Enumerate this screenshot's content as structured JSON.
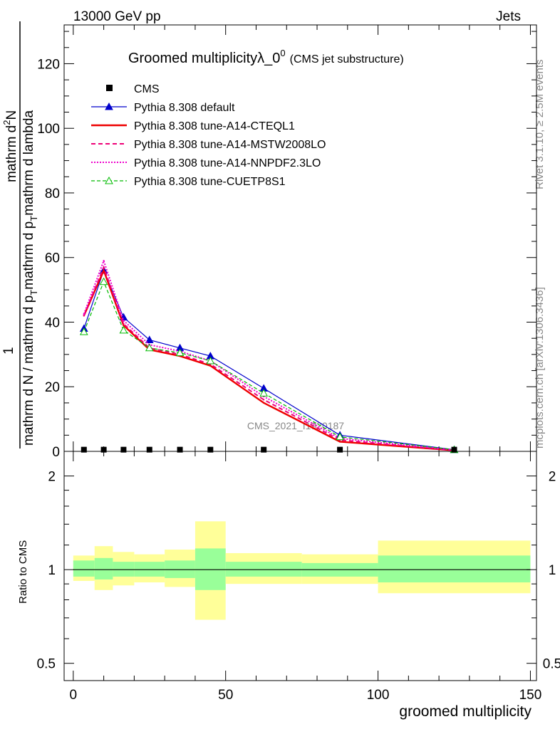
{
  "header": {
    "energy_label": "13000 GeV pp",
    "category_label": "Jets",
    "title": "Groomed multiplicity",
    "title_symbol": "λ_0",
    "title_superscript": "0",
    "subtitle": "(CMS jet substructure)",
    "side_label_top": "Rivet 3.1.10, ≥ 2.5M events",
    "side_label_bottom": "mcplots.cern.ch [arXiv:1306.3436]",
    "watermark": "CMS_2021_I1920187"
  },
  "y_axis_label": {
    "numerator_line1": "mathrm d",
    "numerator_sup": "2",
    "numerator_line2": "N",
    "fraction_one": "1",
    "den_main": "mathrm d N / mathrm d p",
    "den_sub": "T",
    "den_part2": "mathrm d p",
    "den_sub2": "T",
    "den_part3": "mathrm d lambda",
    "top_label": "mathrm d N / mathrm d p_T mathrm d p_T mathrm d lambda"
  },
  "ratio_ylabel": "Ratio to CMS",
  "xlabel": "groomed multiplicity",
  "legend": [
    {
      "name": "CMS",
      "color": "#000000",
      "style": "data"
    },
    {
      "name": "Pythia 8.308 default",
      "color": "#0000cc",
      "style": "solid-triangle"
    },
    {
      "name": "Pythia 8.308 tune-A14-CTEQL1",
      "color": "#ee0000",
      "style": "solid-thick"
    },
    {
      "name": "Pythia 8.308 tune-A14-MSTW2008LO",
      "color": "#ee0077",
      "style": "dashed"
    },
    {
      "name": "Pythia 8.308 tune-A14-NNPDF2.3LO",
      "color": "#ee00cc",
      "style": "dotted"
    },
    {
      "name": "Pythia 8.308 tune-CUETP8S1",
      "color": "#00bb00",
      "style": "dashed-open-triangle"
    }
  ],
  "chart_data": {
    "type": "line",
    "xlabel": "groomed multiplicity",
    "xlim": [
      -3,
      152
    ],
    "ylim": [
      0,
      132
    ],
    "ratio_ylim": [
      0.44,
      2.4
    ],
    "x_ticks": [
      0,
      50,
      100,
      150
    ],
    "y_ticks": [
      0,
      20,
      40,
      60,
      80,
      100,
      120
    ],
    "ratio_ticks": [
      0.5,
      1,
      2
    ],
    "bins": [
      [
        0,
        7
      ],
      [
        7,
        13
      ],
      [
        13,
        20
      ],
      [
        20,
        30
      ],
      [
        30,
        40
      ],
      [
        40,
        50
      ],
      [
        50,
        75
      ],
      [
        75,
        100
      ],
      [
        100,
        150
      ]
    ],
    "x": [
      3.5,
      10,
      16.5,
      25,
      35,
      45,
      62.5,
      87.5,
      125
    ],
    "data": [
      0.3,
      0.3,
      0.3,
      0.3,
      0.3,
      0.3,
      0.3,
      0.3,
      0.3
    ],
    "series": [
      {
        "name": "Pythia 8.308 default",
        "values": [
          38,
          56,
          41.5,
          34.5,
          32,
          29.5,
          19.5,
          5,
          0.5
        ]
      },
      {
        "name": "Pythia 8.308 tune-A14-CTEQL1",
        "values": [
          42,
          56,
          39,
          31.5,
          29.5,
          26.5,
          15,
          3,
          0.3
        ]
      },
      {
        "name": "Pythia 8.308 tune-A14-MSTW2008LO",
        "values": [
          42,
          57,
          39.5,
          32,
          30,
          27,
          16,
          3.5,
          0.3
        ]
      },
      {
        "name": "Pythia 8.308 tune-A14-NNPDF2.3LO",
        "values": [
          42.5,
          59,
          40.5,
          33,
          31,
          28,
          17,
          4,
          0.4
        ]
      },
      {
        "name": "Pythia 8.308 tune-CUETP8S1",
        "values": [
          37,
          52.5,
          37.5,
          32,
          30.5,
          28,
          18,
          4.5,
          0.5
        ]
      }
    ],
    "ratio_band_stat": [
      [
        0.95,
        1.07
      ],
      [
        0.93,
        1.09
      ],
      [
        0.95,
        1.06
      ],
      [
        0.95,
        1.06
      ],
      [
        0.94,
        1.07
      ],
      [
        0.86,
        1.17
      ],
      [
        0.95,
        1.06
      ],
      [
        0.95,
        1.05
      ],
      [
        0.91,
        1.11
      ]
    ],
    "ratio_band_total": [
      [
        0.92,
        1.11
      ],
      [
        0.86,
        1.19
      ],
      [
        0.89,
        1.14
      ],
      [
        0.91,
        1.12
      ],
      [
        0.88,
        1.16
      ],
      [
        0.69,
        1.43
      ],
      [
        0.9,
        1.13
      ],
      [
        0.9,
        1.12
      ],
      [
        0.84,
        1.24
      ]
    ]
  }
}
